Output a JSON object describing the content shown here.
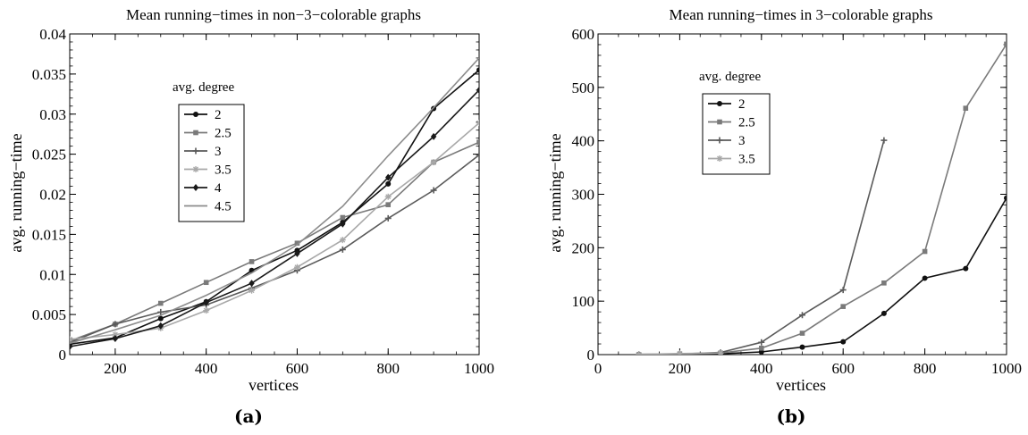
{
  "chart_data": [
    {
      "type": "line",
      "title": "Mean running−times in non−3−colorable graphs",
      "xlabel": "vertices",
      "ylabel": "avg. running−time",
      "caption": "(a)",
      "xlim": [
        100,
        1000
      ],
      "ylim": [
        0,
        0.04
      ],
      "x_ticks": [
        200,
        400,
        600,
        800,
        1000
      ],
      "x_tick_labels": [
        "200",
        "400",
        "600",
        "800",
        "1000"
      ],
      "y_ticks": [
        0,
        0.005,
        0.01,
        0.015,
        0.02,
        0.025,
        0.03,
        0.035,
        0.04
      ],
      "y_tick_labels": [
        "0",
        "0.005",
        "0.01",
        "0.015",
        "0.02",
        "0.025",
        "0.03",
        "0.035",
        "0.04"
      ],
      "grid": false,
      "legend_title": "avg. degree",
      "legend_position": "upper-left",
      "x": [
        100,
        200,
        300,
        400,
        500,
        600,
        700,
        800,
        900,
        1000
      ],
      "series": [
        {
          "name": "2",
          "color": "#111111",
          "marker": "circle",
          "values": [
            0.0013,
            0.0021,
            0.0045,
            0.0066,
            0.0105,
            0.013,
            0.0165,
            0.0213,
            0.0307,
            0.0355
          ]
        },
        {
          "name": "2.5",
          "color": "#7a7a7a",
          "marker": "square",
          "values": [
            0.0017,
            0.0038,
            0.0064,
            0.009,
            0.0116,
            0.0139,
            0.0171,
            0.0187,
            0.024,
            0.0265
          ]
        },
        {
          "name": "3",
          "color": "#5a5a5a",
          "marker": "plus",
          "values": [
            0.0015,
            0.0038,
            0.0053,
            0.0062,
            0.0083,
            0.0105,
            0.0131,
            0.017,
            0.0205,
            0.0249
          ]
        },
        {
          "name": "3.5",
          "color": "#a8a8a8",
          "marker": "star",
          "values": [
            0.0019,
            0.0025,
            0.0033,
            0.0055,
            0.008,
            0.0109,
            0.0143,
            0.0197,
            0.024,
            0.0289
          ]
        },
        {
          "name": "4",
          "color": "#1a1a1a",
          "marker": "diamond",
          "values": [
            0.001,
            0.002,
            0.0036,
            0.0065,
            0.0089,
            0.0126,
            0.0163,
            0.0221,
            0.0272,
            0.033
          ]
        },
        {
          "name": "4.5",
          "color": "#8c8c8c",
          "marker": "none",
          "values": [
            0.0014,
            0.0031,
            0.0049,
            0.0074,
            0.0102,
            0.0137,
            0.0185,
            0.0248,
            0.0308,
            0.037
          ]
        }
      ]
    },
    {
      "type": "line",
      "title": "Mean running−times in 3−colorable graphs",
      "xlabel": "vertices",
      "ylabel": "avg. running−time",
      "caption": "(b)",
      "xlim": [
        0,
        1000
      ],
      "ylim": [
        0,
        600
      ],
      "x_ticks": [
        0,
        200,
        400,
        600,
        800,
        1000
      ],
      "x_tick_labels": [
        "0",
        "200",
        "400",
        "600",
        "800",
        "1000"
      ],
      "y_ticks": [
        0,
        100,
        200,
        300,
        400,
        500,
        600
      ],
      "y_tick_labels": [
        "0",
        "100",
        "200",
        "300",
        "400",
        "500",
        "600"
      ],
      "grid": false,
      "legend_title": "avg. degree",
      "legend_position": "upper-left",
      "series": [
        {
          "name": "2",
          "color": "#111111",
          "marker": "circle",
          "x": [
            100,
            200,
            300,
            400,
            500,
            600,
            700,
            800,
            900,
            1000
          ],
          "values": [
            0.2,
            0.5,
            1.5,
            5,
            14,
            24,
            77,
            143,
            161,
            293
          ]
        },
        {
          "name": "2.5",
          "color": "#7a7a7a",
          "marker": "square",
          "x": [
            100,
            200,
            300,
            400,
            500,
            600,
            700,
            800,
            900,
            1000
          ],
          "values": [
            0.3,
            1,
            3,
            12,
            40,
            90,
            134,
            193,
            461,
            581
          ]
        },
        {
          "name": "3",
          "color": "#5a5a5a",
          "marker": "plus",
          "x": [
            100,
            200,
            300,
            400,
            500,
            600,
            700
          ],
          "values": [
            0.5,
            1,
            4,
            23,
            74,
            121,
            401
          ]
        },
        {
          "name": "3.5",
          "color": "#a8a8a8",
          "marker": "star",
          "x": [
            100,
            200,
            300
          ],
          "values": [
            0.5,
            2,
            3
          ]
        }
      ]
    }
  ]
}
